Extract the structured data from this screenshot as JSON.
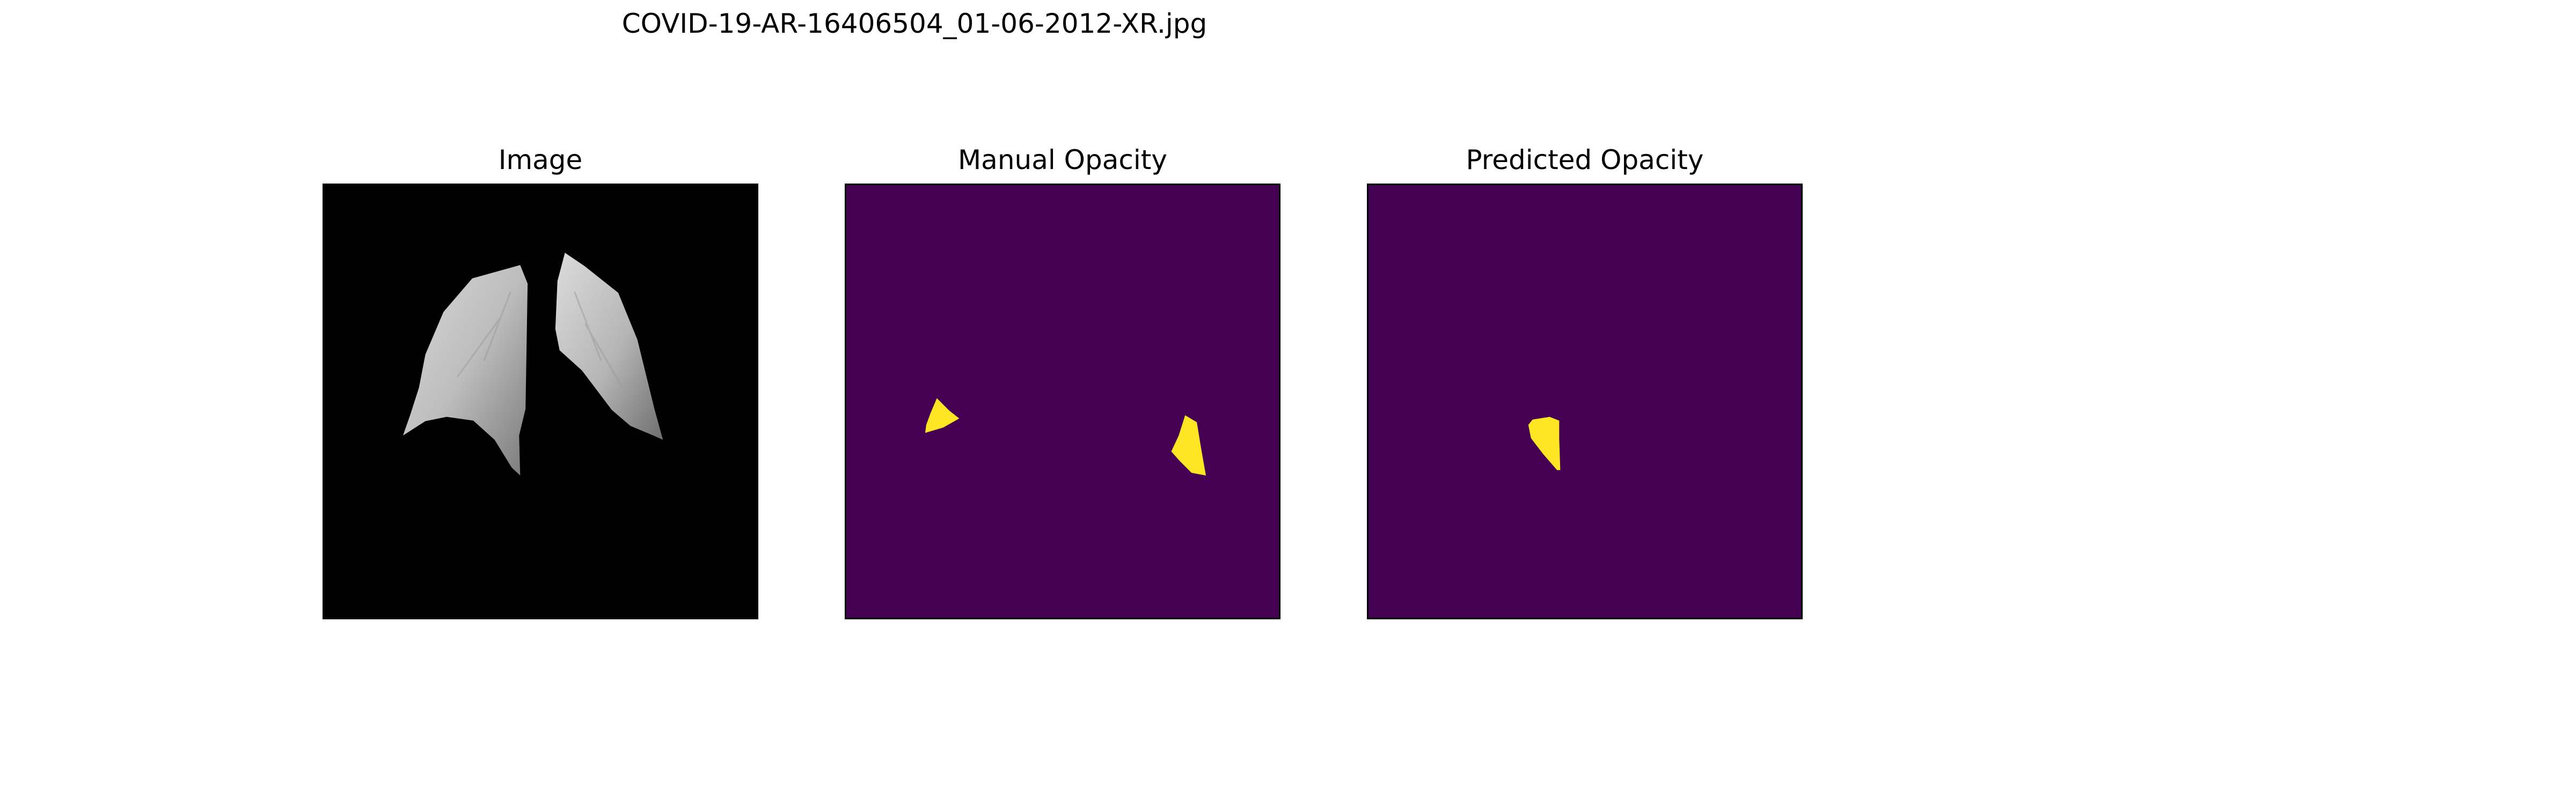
{
  "figure": {
    "title": "COVID-19-AR-16406504_01-06-2012-XR.jpg"
  },
  "panels": [
    {
      "title": "Image",
      "content": "grayscale chest x-ray with lung region masked",
      "background": "#000000"
    },
    {
      "title": "Manual Opacity",
      "content": "binary opacity mask",
      "background": "#440154",
      "mask_color": "#fde725"
    },
    {
      "title": "Predicted Opacity",
      "content": "binary opacity mask",
      "background": "#440154",
      "mask_color": "#fde725"
    }
  ],
  "colors": {
    "mask_background": "#440154",
    "mask_foreground": "#fde725",
    "image_background": "#000000"
  }
}
